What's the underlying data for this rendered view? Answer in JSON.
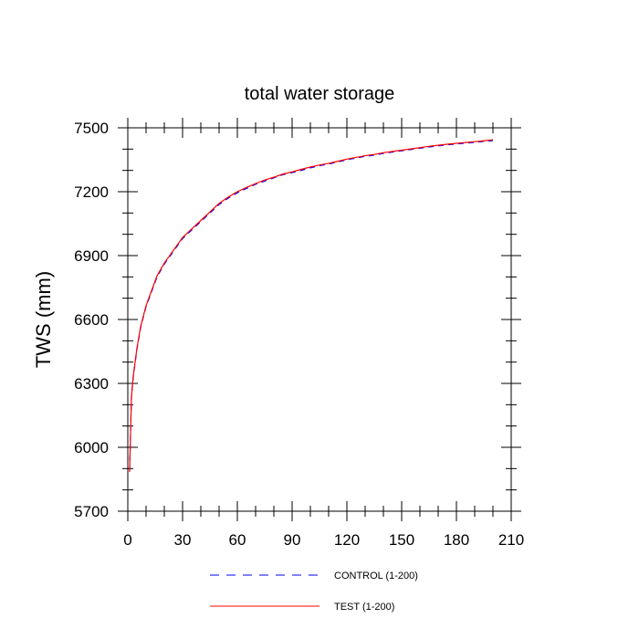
{
  "chart_data": {
    "type": "line",
    "title": "total water storage",
    "xlabel": "",
    "ylabel": "TWS  (mm)",
    "xlim": [
      0,
      210
    ],
    "ylim": [
      5700,
      7500
    ],
    "xticks": [
      0,
      30,
      60,
      90,
      120,
      150,
      180,
      210
    ],
    "yticks": [
      5700,
      6000,
      6300,
      6600,
      6900,
      7200,
      7500
    ],
    "xtick_labels": [
      "0",
      "30",
      "60",
      "90",
      "120",
      "150",
      "180",
      "210"
    ],
    "ytick_labels": [
      "5700",
      "6000",
      "6300",
      "6600",
      "6900",
      "7200",
      "7500"
    ],
    "grid": false,
    "legend_position": "bottom-center",
    "x": [
      1,
      2,
      3,
      5,
      7,
      10,
      13,
      16,
      20,
      25,
      30,
      35,
      40,
      45,
      50,
      55,
      60,
      65,
      70,
      75,
      80,
      85,
      90,
      95,
      100,
      105,
      110,
      115,
      120,
      125,
      130,
      135,
      140,
      145,
      150,
      155,
      160,
      165,
      170,
      175,
      180,
      185,
      190,
      195,
      200
    ],
    "series": [
      {
        "name": "CONTROL (1-200)",
        "color": "#0000ff",
        "dash": "dashed",
        "values": [
          5890,
          6240,
          6330,
          6460,
          6560,
          6660,
          6730,
          6800,
          6860,
          6920,
          6980,
          7020,
          7060,
          7100,
          7140,
          7170,
          7195,
          7215,
          7235,
          7250,
          7265,
          7280,
          7290,
          7300,
          7312,
          7322,
          7330,
          7340,
          7350,
          7358,
          7366,
          7372,
          7380,
          7386,
          7392,
          7398,
          7404,
          7410,
          7415,
          7420,
          7424,
          7428,
          7432,
          7436,
          7440
        ]
      },
      {
        "name": "TEST (1-200)",
        "color": "#ff0000",
        "dash": "solid",
        "values": [
          5885,
          6235,
          6335,
          6465,
          6565,
          6665,
          6735,
          6805,
          6865,
          6925,
          6985,
          7025,
          7065,
          7105,
          7145,
          7175,
          7200,
          7220,
          7238,
          7255,
          7268,
          7283,
          7293,
          7305,
          7316,
          7325,
          7333,
          7343,
          7353,
          7361,
          7369,
          7375,
          7383,
          7389,
          7395,
          7401,
          7407,
          7413,
          7418,
          7423,
          7427,
          7431,
          7435,
          7439,
          7444
        ]
      }
    ]
  }
}
